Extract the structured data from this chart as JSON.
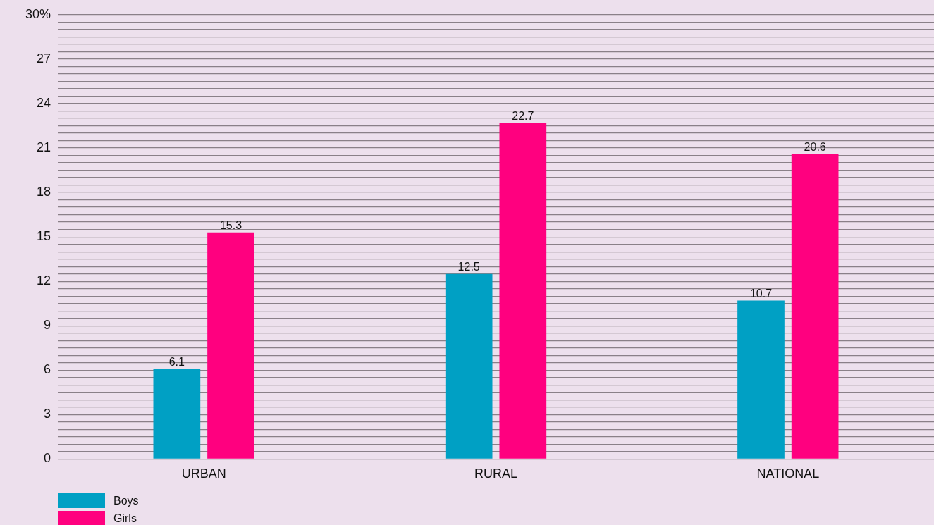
{
  "chart_data": {
    "type": "bar",
    "categories": [
      "URBAN",
      "RURAL",
      "NATIONAL"
    ],
    "series": [
      {
        "name": "Boys",
        "color": "#00a0c4",
        "values": [
          6.1,
          12.5,
          10.7
        ]
      },
      {
        "name": "Girls",
        "color": "#ff007f",
        "values": [
          15.3,
          22.7,
          20.6
        ]
      }
    ],
    "ylim": [
      0,
      30
    ],
    "yticks": [
      0,
      {
        "value": 0.5,
        "label": null
      },
      {
        "value": 1,
        "label": null
      },
      {
        "value": 1.5,
        "label": null
      },
      {
        "value": 2,
        "label": null
      },
      {
        "value": 2.5,
        "label": null
      },
      3,
      {
        "value": 3.5,
        "label": null
      },
      {
        "value": 4,
        "label": null
      },
      {
        "value": 4.5,
        "label": null
      },
      {
        "value": 5,
        "label": null
      },
      {
        "value": 5.5,
        "label": null
      },
      6,
      {
        "value": 6.5,
        "label": null
      },
      {
        "value": 7,
        "label": null
      },
      {
        "value": 7.5,
        "label": null
      },
      {
        "value": 8,
        "label": null
      },
      {
        "value": 8.5,
        "label": null
      },
      9,
      {
        "value": 9.5,
        "label": null
      },
      {
        "value": 10,
        "label": null
      },
      {
        "value": 10.5,
        "label": null
      },
      {
        "value": 11,
        "label": null
      },
      {
        "value": 11.5,
        "label": null
      },
      12,
      {
        "value": 12.5,
        "label": null
      },
      {
        "value": 13,
        "label": null
      },
      {
        "value": 13.5,
        "label": null
      },
      {
        "value": 14,
        "label": null
      },
      {
        "value": 14.5,
        "label": null
      },
      15,
      {
        "value": 15.5,
        "label": null
      },
      {
        "value": 16,
        "label": null
      },
      {
        "value": 16.5,
        "label": null
      },
      {
        "value": 17,
        "label": null
      },
      {
        "value": 17.5,
        "label": null
      },
      18,
      {
        "value": 18.5,
        "label": null
      },
      {
        "value": 19,
        "label": null
      },
      {
        "value": 19.5,
        "label": null
      },
      {
        "value": 20,
        "label": null
      },
      {
        "value": 20.5,
        "label": null
      },
      21,
      {
        "value": 21.5,
        "label": null
      },
      {
        "value": 22,
        "label": null
      },
      {
        "value": 22.5,
        "label": null
      },
      {
        "value": 23,
        "label": null
      },
      {
        "value": 23.5,
        "label": null
      },
      24,
      {
        "value": 24.5,
        "label": null
      },
      {
        "value": 25,
        "label": null
      },
      {
        "value": 25.5,
        "label": null
      },
      {
        "value": 26,
        "label": null
      },
      {
        "value": 26.5,
        "label": null
      },
      27,
      {
        "value": 27.5,
        "label": null
      },
      {
        "value": 28,
        "label": null
      },
      {
        "value": 28.5,
        "label": null
      },
      {
        "value": 29,
        "label": null
      },
      {
        "value": 29.5,
        "label": null
      },
      {
        "value": 30,
        "label": "30%"
      }
    ],
    "grid": "y",
    "legend": "bottom left",
    "data_labels": true
  }
}
